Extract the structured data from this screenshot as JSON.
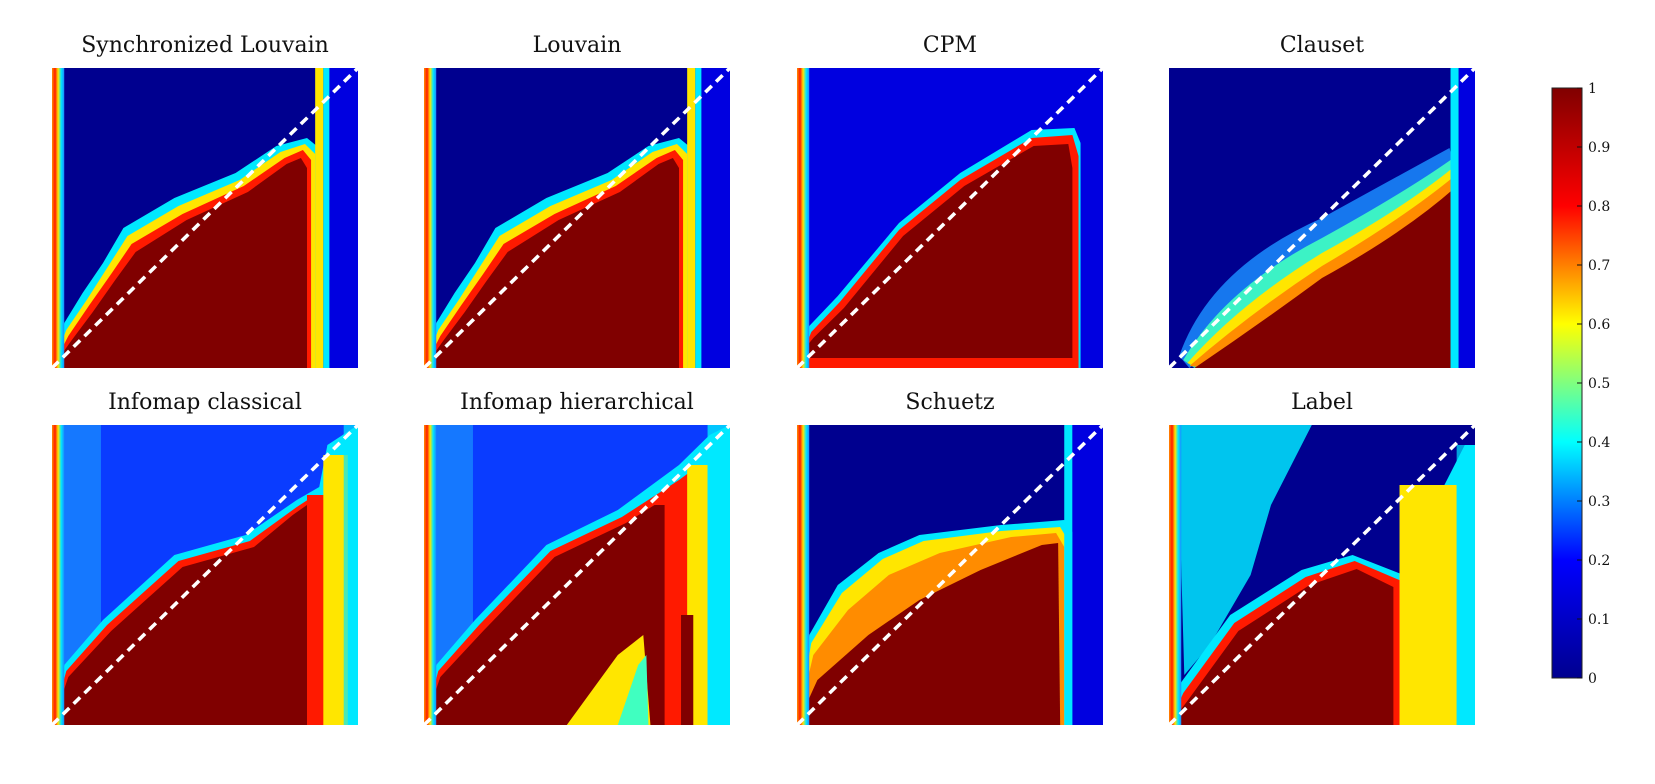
{
  "panels": [
    {
      "title": "Synchronized Louvain",
      "style": "louvain"
    },
    {
      "title": "Louvain",
      "style": "louvain"
    },
    {
      "title": "CPM",
      "style": "cpm"
    },
    {
      "title": "Clauset",
      "style": "clauset"
    },
    {
      "title": "Infomap classical",
      "style": "infomap"
    },
    {
      "title": "Infomap hierarchical",
      "style": "infomap_h"
    },
    {
      "title": "Schuetz",
      "style": "schuetz"
    },
    {
      "title": "Label",
      "style": "label"
    }
  ],
  "colorbar": {
    "min": 0,
    "max": 1,
    "ticks": [
      "0",
      "0.1",
      "0.2",
      "0.3",
      "0.4",
      "0.5",
      "0.6",
      "0.7",
      "0.8",
      "0.9",
      "1"
    ],
    "colormap": [
      "#00008f",
      "#0000ff",
      "#00ffff",
      "#ffff00",
      "#ff0000",
      "#800000"
    ]
  },
  "chart_data": {
    "type": "heatmap",
    "colormap": "jet",
    "value_range": [
      0,
      1
    ],
    "diagonal_reference_line": "white dashed",
    "titles": [
      "Synchronized Louvain",
      "Louvain",
      "CPM",
      "Clauset",
      "Infomap classical",
      "Infomap hierarchical",
      "Schuetz",
      "Label"
    ],
    "grid": "2 rows x 4 columns"
  }
}
